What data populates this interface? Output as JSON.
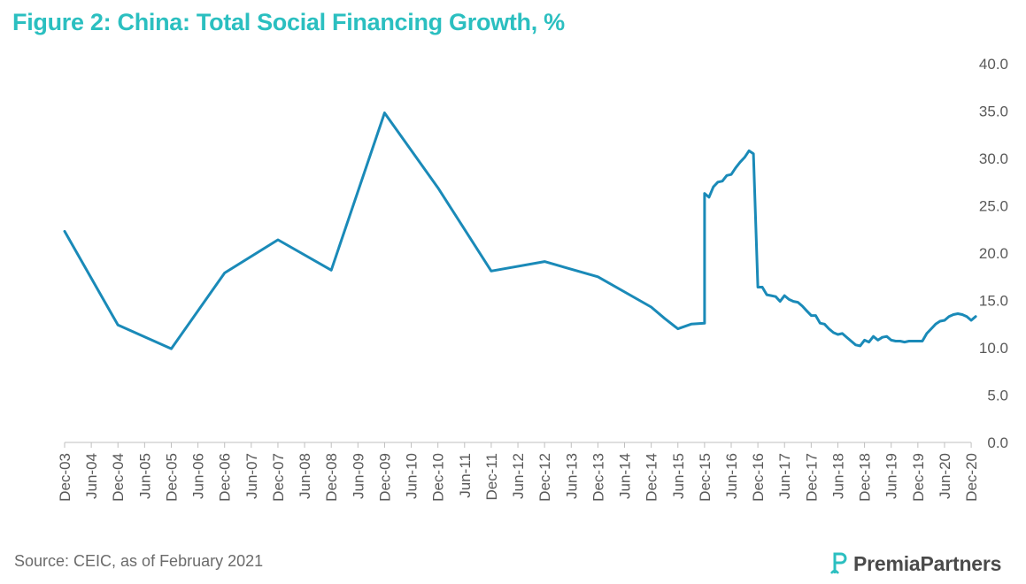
{
  "title": "Figure 2: China: Total Social Financing Growth, %",
  "source": "Source: CEIC, as of February 2021",
  "brand": "PremiaPartners",
  "colors": {
    "title": "#2bbfc0",
    "line": "#1a8ab8",
    "axis": "#bfbfbf",
    "text": "#595959"
  },
  "chart_data": {
    "type": "line",
    "title": "Figure 2: China: Total Social Financing Growth, %",
    "xlabel": "",
    "ylabel": "",
    "ylim": [
      0,
      40
    ],
    "yticks": [
      "0.0",
      "5.0",
      "10.0",
      "15.0",
      "20.0",
      "25.0",
      "30.0",
      "35.0",
      "40.0"
    ],
    "y_axis_position": "right",
    "grid": false,
    "legend": "none",
    "x_tick_labels": [
      "Dec-03",
      "Jun-04",
      "Dec-04",
      "Jun-05",
      "Dec-05",
      "Jun-06",
      "Dec-06",
      "Jun-07",
      "Dec-07",
      "Jun-08",
      "Dec-08",
      "Jun-09",
      "Dec-09",
      "Jun-10",
      "Dec-10",
      "Jun-11",
      "Dec-11",
      "Jun-12",
      "Dec-12",
      "Jun-13",
      "Dec-13",
      "Jun-14",
      "Dec-14",
      "Jun-15",
      "Dec-15",
      "Jun-16",
      "Dec-16",
      "Jun-17",
      "Dec-17",
      "Jun-18",
      "Dec-18",
      "Jun-19",
      "Dec-19",
      "Jun-20",
      "Dec-20"
    ],
    "series": [
      {
        "x": [
          "2003-12",
          "2004-12",
          "2005-12",
          "2006-12",
          "2007-12",
          "2008-12",
          "2009-12",
          "2010-12",
          "2011-12",
          "2012-12",
          "2013-12",
          "2014-12",
          "2015-03",
          "2015-06",
          "2015-09",
          "2015-12",
          "2015-12",
          "2016-01",
          "2016-02",
          "2016-03",
          "2016-04",
          "2016-05",
          "2016-06",
          "2016-07",
          "2016-08",
          "2016-09",
          "2016-10",
          "2016-11",
          "2016-12",
          "2017-01",
          "2017-02",
          "2017-03",
          "2017-04",
          "2017-05",
          "2017-06",
          "2017-07",
          "2017-08",
          "2017-09",
          "2017-10",
          "2017-11",
          "2017-12",
          "2018-01",
          "2018-02",
          "2018-03",
          "2018-04",
          "2018-05",
          "2018-06",
          "2018-07",
          "2018-08",
          "2018-09",
          "2018-10",
          "2018-11",
          "2018-12",
          "2019-01",
          "2019-02",
          "2019-03",
          "2019-04",
          "2019-05",
          "2019-06",
          "2019-07",
          "2019-08",
          "2019-09",
          "2019-10",
          "2019-11",
          "2019-12",
          "2020-01",
          "2020-02",
          "2020-03",
          "2020-04",
          "2020-05",
          "2020-06",
          "2020-07",
          "2020-08",
          "2020-09",
          "2020-10",
          "2020-11",
          "2020-12",
          "2021-01"
        ],
        "values": [
          22.3,
          12.4,
          9.9,
          17.9,
          21.4,
          18.2,
          34.8,
          26.9,
          18.1,
          19.1,
          17.5,
          14.3,
          13.1,
          12.0,
          12.5,
          12.6,
          26.3,
          25.9,
          27.0,
          27.5,
          27.6,
          28.2,
          28.3,
          29.0,
          29.6,
          30.1,
          30.8,
          30.5,
          16.4,
          16.4,
          15.6,
          15.5,
          15.4,
          14.9,
          15.5,
          15.1,
          14.9,
          14.8,
          14.4,
          13.9,
          13.4,
          13.4,
          12.6,
          12.5,
          12.0,
          11.6,
          11.4,
          11.5,
          11.1,
          10.7,
          10.3,
          10.2,
          10.8,
          10.6,
          11.2,
          10.8,
          11.1,
          11.2,
          10.8,
          10.7,
          10.7,
          10.6,
          10.7,
          10.7,
          10.7,
          10.7,
          11.5,
          12.0,
          12.5,
          12.8,
          12.9,
          13.3,
          13.5,
          13.6,
          13.5,
          13.3,
          12.9,
          13.3
        ]
      }
    ]
  }
}
